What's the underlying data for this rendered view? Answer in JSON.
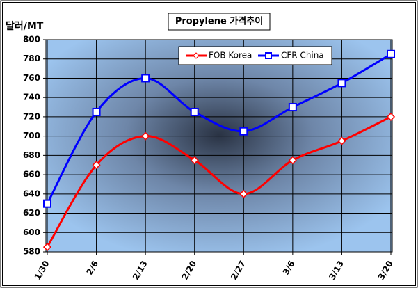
{
  "chart_data": {
    "type": "line",
    "title": "Propylene 가격추이",
    "y_label": "달러/MT",
    "categories": [
      "1/30",
      "2/6",
      "2/13",
      "2/20",
      "2/27",
      "3/6",
      "3/13",
      "3/20"
    ],
    "series": [
      {
        "name": "FOB Korea",
        "color": "#ff0000",
        "values": [
          585,
          670,
          700,
          675,
          640,
          675,
          695,
          720
        ]
      },
      {
        "name": "CFR China",
        "color": "#0000ff",
        "values": [
          630,
          725,
          760,
          725,
          705,
          730,
          755,
          785
        ]
      }
    ],
    "ylim": [
      580,
      800
    ],
    "yticks": [
      580,
      600,
      620,
      640,
      660,
      680,
      700,
      720,
      740,
      760,
      780,
      800
    ],
    "grid": true,
    "legend": "top-right",
    "smooth": true
  }
}
